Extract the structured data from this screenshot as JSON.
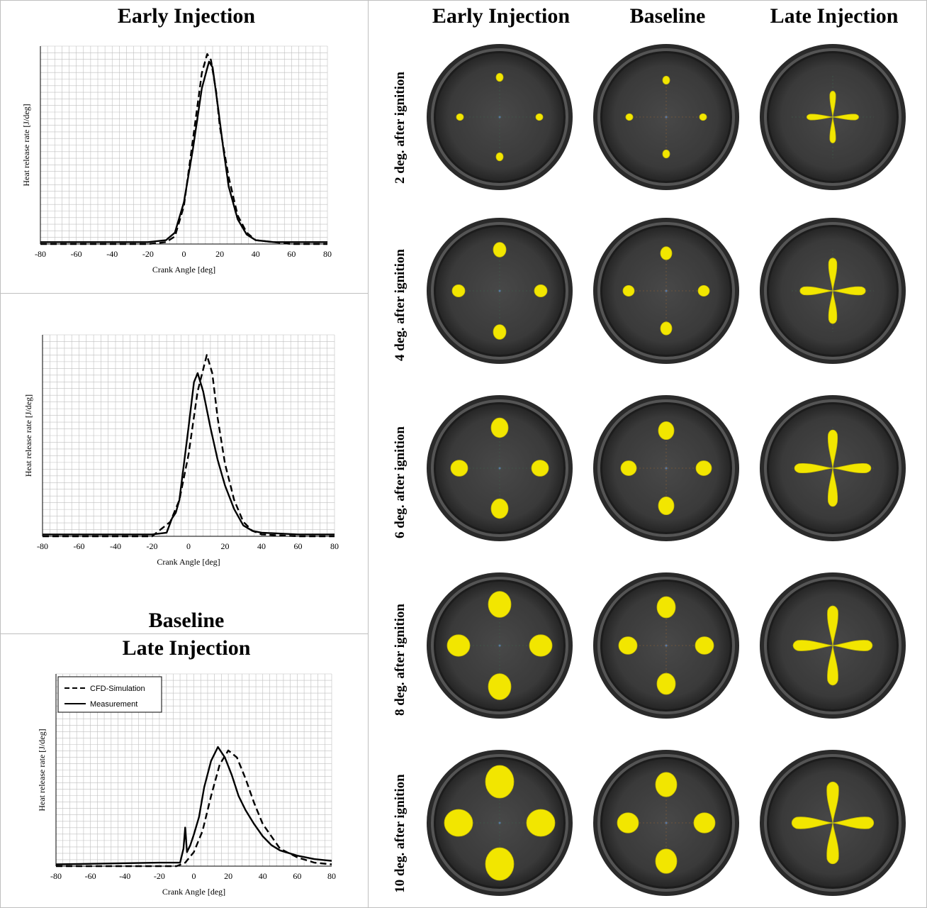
{
  "left_titles": {
    "early": "Early Injection",
    "baseline": "Baseline",
    "late": "Late Injection"
  },
  "column_headers": [
    "Early Injection",
    "Baseline",
    "Late Injection"
  ],
  "row_labels": [
    "2 deg. after ignition",
    "4 deg. after ignition",
    "6 deg. after ignition",
    "8 deg. after ignition",
    "10 deg. after ignition"
  ],
  "colors": {
    "background": "#ffffff",
    "grid": "#bfbfbf",
    "flame": "#f2e600",
    "chamber": "#3c3c3c",
    "rim": "#5c5c5c"
  },
  "chart_data": [
    {
      "type": "line",
      "title": "Early Injection",
      "xlabel": "Crank Angle [deg]",
      "ylabel": "Heat release rate [J/deg]",
      "xlim": [
        -80,
        80
      ],
      "xticks": [
        "-80",
        "-60",
        "-40",
        "-20",
        "0",
        "20",
        "40",
        "60",
        "80"
      ],
      "ylim": [
        0,
        1
      ],
      "grid": true,
      "series": [
        {
          "name": "CFD-Simulation",
          "style": "dashed",
          "x": [
            -80,
            -20,
            -10,
            -5,
            0,
            5,
            10,
            13,
            15,
            18,
            20,
            25,
            30,
            35,
            40,
            50,
            60,
            80
          ],
          "y": [
            0,
            0,
            0.01,
            0.04,
            0.2,
            0.55,
            0.9,
            1.0,
            0.97,
            0.8,
            0.62,
            0.35,
            0.15,
            0.06,
            0.02,
            0.01,
            0,
            0
          ]
        },
        {
          "name": "Measurement",
          "style": "solid",
          "x": [
            -80,
            -20,
            -10,
            -5,
            0,
            5,
            10,
            14,
            16,
            19,
            22,
            25,
            30,
            35,
            40,
            50,
            60,
            80
          ],
          "y": [
            0.01,
            0.01,
            0.02,
            0.06,
            0.22,
            0.5,
            0.82,
            0.96,
            0.93,
            0.72,
            0.5,
            0.3,
            0.13,
            0.05,
            0.02,
            0.01,
            0.01,
            0.01
          ]
        }
      ]
    },
    {
      "type": "line",
      "title": "Baseline",
      "xlabel": "Crank Angle [deg]",
      "ylabel": "Heat release rate [J/deg]",
      "xlim": [
        -80,
        80
      ],
      "xticks": [
        "-80",
        "-60",
        "-40",
        "-20",
        "0",
        "20",
        "40",
        "60",
        "80"
      ],
      "ylim": [
        0,
        1
      ],
      "grid": true,
      "series": [
        {
          "name": "CFD-Simulation",
          "style": "dashed",
          "x": [
            -80,
            -20,
            -15,
            -10,
            -5,
            0,
            5,
            10,
            13,
            16,
            20,
            25,
            30,
            35,
            40,
            60,
            80
          ],
          "y": [
            0,
            0,
            0.04,
            0.08,
            0.2,
            0.45,
            0.8,
            1.0,
            0.9,
            0.65,
            0.4,
            0.2,
            0.08,
            0.03,
            0.01,
            0,
            0
          ]
        },
        {
          "name": "Measurement",
          "style": "solid",
          "x": [
            -80,
            -20,
            -12,
            -9,
            -7,
            -5,
            0,
            3,
            5,
            8,
            12,
            16,
            20,
            25,
            30,
            35,
            40,
            60,
            80
          ],
          "y": [
            0.01,
            0.01,
            0.02,
            0.1,
            0.13,
            0.2,
            0.6,
            0.85,
            0.9,
            0.8,
            0.6,
            0.42,
            0.28,
            0.15,
            0.06,
            0.03,
            0.02,
            0.01,
            0.01
          ]
        }
      ]
    },
    {
      "type": "line",
      "title": "Late Injection",
      "xlabel": "Crank Angle [deg]",
      "ylabel": "Heat release rate [J/deg]",
      "xlim": [
        -80,
        80
      ],
      "xticks": [
        "-80",
        "-60",
        "-40",
        "-20",
        "0",
        "20",
        "40",
        "60",
        "80"
      ],
      "ylim": [
        0,
        1
      ],
      "grid": true,
      "legend": {
        "position": "top-left",
        "entries": [
          "CFD-Simulation",
          "Measurement"
        ]
      },
      "series": [
        {
          "name": "CFD-Simulation",
          "style": "dashed",
          "x": [
            -80,
            -10,
            -5,
            0,
            5,
            10,
            15,
            20,
            25,
            30,
            35,
            40,
            50,
            60,
            70,
            80
          ],
          "y": [
            0,
            0,
            0.02,
            0.08,
            0.2,
            0.4,
            0.58,
            0.66,
            0.62,
            0.5,
            0.36,
            0.24,
            0.1,
            0.05,
            0.02,
            0.01
          ]
        },
        {
          "name": "Measurement",
          "style": "solid",
          "x": [
            -80,
            -20,
            -8,
            -6,
            -5,
            -4,
            -2,
            0,
            3,
            6,
            10,
            14,
            18,
            22,
            26,
            30,
            35,
            40,
            45,
            50,
            60,
            70,
            80
          ],
          "y": [
            0.01,
            0.02,
            0.02,
            0.1,
            0.22,
            0.08,
            0.12,
            0.18,
            0.28,
            0.45,
            0.6,
            0.68,
            0.62,
            0.52,
            0.4,
            0.32,
            0.24,
            0.17,
            0.12,
            0.09,
            0.06,
            0.04,
            0.03
          ]
        }
      ]
    }
  ]
}
